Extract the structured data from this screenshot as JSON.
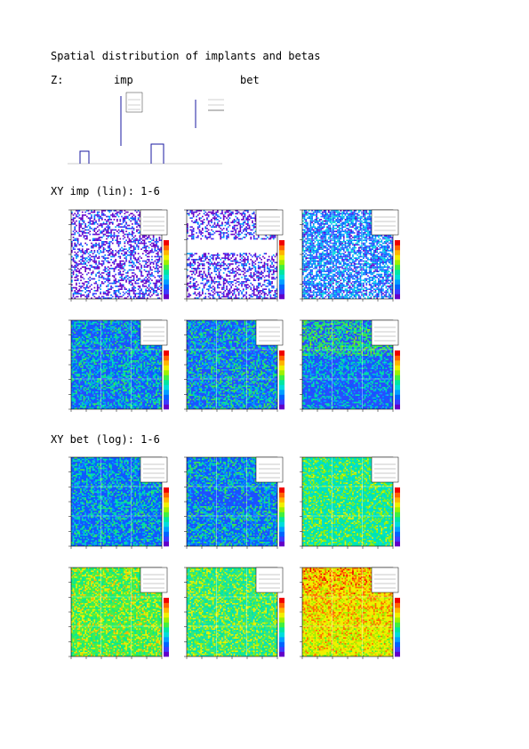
{
  "title": "Spatial distribution of implants and betas",
  "z_section": {
    "label": "Z:",
    "imp_label": "imp",
    "bet_label": "bet"
  },
  "imp_section": {
    "label": "XY imp (lin): 1-6"
  },
  "bet_section": {
    "label": "XY bet (log): 1-6"
  },
  "palette": [
    "#6400c8",
    "#3c3cff",
    "#0064ff",
    "#00a0ff",
    "#00dcdc",
    "#00e6a0",
    "#40f040",
    "#a0f000",
    "#f0f000",
    "#ffb400",
    "#ff6400",
    "#f00000"
  ],
  "chart_data": [
    {
      "type": "heatmap",
      "group": "imp",
      "scale": "lin",
      "index": 1,
      "style": "sparse",
      "bg": "#ffffff",
      "base": 0.15
    },
    {
      "type": "heatmap",
      "group": "imp",
      "scale": "lin",
      "index": 2,
      "style": "sparse-gap",
      "bg": "#ffffff",
      "base": 0.18
    },
    {
      "type": "heatmap",
      "group": "imp",
      "scale": "lin",
      "index": 3,
      "style": "medium",
      "bg": "#ffffff",
      "base": 0.3
    },
    {
      "type": "heatmap",
      "group": "imp",
      "scale": "lin",
      "index": 4,
      "style": "dense",
      "bg": "#2a4cff",
      "base": 0.35
    },
    {
      "type": "heatmap",
      "group": "imp",
      "scale": "lin",
      "index": 5,
      "style": "dense",
      "bg": "#2a4cff",
      "base": 0.38
    },
    {
      "type": "heatmap",
      "group": "imp",
      "scale": "lin",
      "index": 6,
      "style": "dense-bottom",
      "bg": "#2a4cff",
      "base": 0.35
    },
    {
      "type": "heatmap",
      "group": "bet",
      "scale": "log",
      "index": 1,
      "style": "blue-cyan",
      "bg": "#1e50ff",
      "base": 0.35
    },
    {
      "type": "heatmap",
      "group": "bet",
      "scale": "log",
      "index": 2,
      "style": "blue-gap",
      "bg": "#1e50ff",
      "base": 0.38
    },
    {
      "type": "heatmap",
      "group": "bet",
      "scale": "log",
      "index": 3,
      "style": "green",
      "bg": "#00e6b0",
      "base": 0.52
    },
    {
      "type": "heatmap",
      "group": "bet",
      "scale": "log",
      "index": 4,
      "style": "green",
      "bg": "#40f050",
      "base": 0.6
    },
    {
      "type": "heatmap",
      "group": "bet",
      "scale": "log",
      "index": 5,
      "style": "green",
      "bg": "#30e880",
      "base": 0.56
    },
    {
      "type": "heatmap",
      "group": "bet",
      "scale": "log",
      "index": 6,
      "style": "hot",
      "bg": "#f0f000",
      "base": 0.75
    }
  ]
}
